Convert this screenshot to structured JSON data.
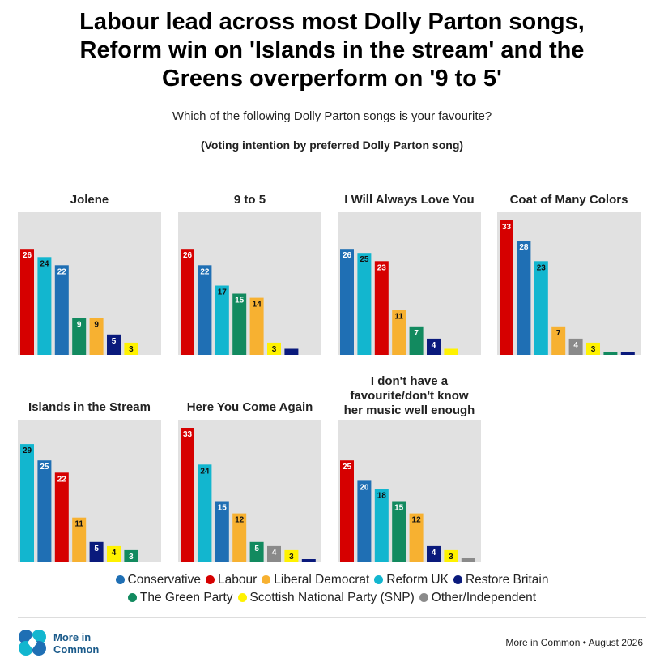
{
  "title_lines": [
    "Labour lead across most Dolly Parton songs,",
    "Reform win on 'Islands in the stream' and the",
    "Greens overperform on '9 to 5'"
  ],
  "question": "Which of the following Dolly Parton songs is your favourite?",
  "subtitle": "(Voting intention by preferred Dolly Parton song)",
  "parties": {
    "con": {
      "name": "Conservative",
      "color": "#1f6fb4",
      "label_color": "#ffffff"
    },
    "lab": {
      "name": "Labour",
      "color": "#d60000",
      "label_color": "#ffffff"
    },
    "ld": {
      "name": "Liberal Democrat",
      "color": "#f7b131",
      "label_color": "#111111"
    },
    "ref": {
      "name": "Reform UK",
      "color": "#12b6cf",
      "label_color": "#111111"
    },
    "rb": {
      "name": "Restore Britain",
      "color": "#0a1a7c",
      "label_color": "#ffffff"
    },
    "grn": {
      "name": "The Green Party",
      "color": "#128a5f",
      "label_color": "#ffffff"
    },
    "snp": {
      "name": "Scottish National Party (SNP)",
      "color": "#fff200",
      "label_color": "#111111"
    },
    "oth": {
      "name": "Other/Independent",
      "color": "#8a8a8a",
      "label_color": "#ffffff"
    }
  },
  "legend_rows": [
    [
      "con",
      "lab",
      "ld",
      "ref",
      "rb"
    ],
    [
      "grn",
      "snp",
      "oth"
    ]
  ],
  "chart_data": [
    {
      "type": "bar",
      "title": "Jolene",
      "ylim": [
        0,
        33
      ],
      "series": [
        {
          "party": "lab",
          "value": 26,
          "label": "26"
        },
        {
          "party": "ref",
          "value": 24,
          "label": "24"
        },
        {
          "party": "con",
          "value": 22,
          "label": "22"
        },
        {
          "party": "grn",
          "value": 9,
          "label": "9"
        },
        {
          "party": "ld",
          "value": 9,
          "label": "9"
        },
        {
          "party": "rb",
          "value": 5,
          "label": "5"
        },
        {
          "party": "snp",
          "value": 3,
          "label": "3"
        }
      ]
    },
    {
      "type": "bar",
      "title": "9 to 5",
      "ylim": [
        0,
        33
      ],
      "series": [
        {
          "party": "lab",
          "value": 26,
          "label": "26"
        },
        {
          "party": "con",
          "value": 22,
          "label": "22"
        },
        {
          "party": "ref",
          "value": 17,
          "label": "17"
        },
        {
          "party": "grn",
          "value": 15,
          "label": "15"
        },
        {
          "party": "ld",
          "value": 14,
          "label": "14"
        },
        {
          "party": "snp",
          "value": 3,
          "label": "3"
        },
        {
          "party": "rb",
          "value": 1.5,
          "label": ""
        }
      ]
    },
    {
      "type": "bar",
      "title": "I Will Always Love You",
      "ylim": [
        0,
        33
      ],
      "series": [
        {
          "party": "con",
          "value": 26,
          "label": "26"
        },
        {
          "party": "ref",
          "value": 25,
          "label": "25"
        },
        {
          "party": "lab",
          "value": 23,
          "label": "23"
        },
        {
          "party": "ld",
          "value": 11,
          "label": "11"
        },
        {
          "party": "grn",
          "value": 7,
          "label": "7"
        },
        {
          "party": "rb",
          "value": 4,
          "label": "4"
        },
        {
          "party": "snp",
          "value": 1.5,
          "label": ""
        }
      ]
    },
    {
      "type": "bar",
      "title": "Coat of Many Colors",
      "ylim": [
        0,
        33
      ],
      "series": [
        {
          "party": "lab",
          "value": 33,
          "label": "33"
        },
        {
          "party": "con",
          "value": 28,
          "label": "28"
        },
        {
          "party": "ref",
          "value": 23,
          "label": "23"
        },
        {
          "party": "ld",
          "value": 7,
          "label": "7"
        },
        {
          "party": "oth",
          "value": 4,
          "label": "4"
        },
        {
          "party": "snp",
          "value": 3,
          "label": "3"
        },
        {
          "party": "grn",
          "value": 0.7,
          "label": ""
        },
        {
          "party": "rb",
          "value": 0.7,
          "label": ""
        }
      ]
    },
    {
      "type": "bar",
      "title": "Islands in the Stream",
      "ylim": [
        0,
        33
      ],
      "series": [
        {
          "party": "ref",
          "value": 29,
          "label": "29"
        },
        {
          "party": "con",
          "value": 25,
          "label": "25"
        },
        {
          "party": "lab",
          "value": 22,
          "label": "22"
        },
        {
          "party": "ld",
          "value": 11,
          "label": "11"
        },
        {
          "party": "rb",
          "value": 5,
          "label": "5"
        },
        {
          "party": "snp",
          "value": 4,
          "label": "4"
        },
        {
          "party": "grn",
          "value": 3,
          "label": "3"
        }
      ]
    },
    {
      "type": "bar",
      "title": "Here You Come Again",
      "ylim": [
        0,
        33
      ],
      "series": [
        {
          "party": "lab",
          "value": 33,
          "label": "33"
        },
        {
          "party": "ref",
          "value": 24,
          "label": "24"
        },
        {
          "party": "con",
          "value": 15,
          "label": "15"
        },
        {
          "party": "ld",
          "value": 12,
          "label": "12"
        },
        {
          "party": "grn",
          "value": 5,
          "label": "5"
        },
        {
          "party": "oth",
          "value": 4,
          "label": "4"
        },
        {
          "party": "snp",
          "value": 3,
          "label": "3"
        },
        {
          "party": "rb",
          "value": 0.8,
          "label": ""
        }
      ]
    },
    {
      "type": "bar",
      "title_lines": [
        "I don't have a",
        "favourite/don't know",
        "her music well enough"
      ],
      "ylim": [
        0,
        33
      ],
      "series": [
        {
          "party": "lab",
          "value": 25,
          "label": "25"
        },
        {
          "party": "con",
          "value": 20,
          "label": "20"
        },
        {
          "party": "ref",
          "value": 18,
          "label": "18"
        },
        {
          "party": "grn",
          "value": 15,
          "label": "15"
        },
        {
          "party": "ld",
          "value": 12,
          "label": "12"
        },
        {
          "party": "rb",
          "value": 4,
          "label": "4"
        },
        {
          "party": "snp",
          "value": 3,
          "label": "3"
        },
        {
          "party": "oth",
          "value": 1,
          "label": ""
        }
      ]
    }
  ],
  "footer": {
    "brand_line1": "More in",
    "brand_line2": "Common",
    "credit": "More in Common • August 2026"
  }
}
